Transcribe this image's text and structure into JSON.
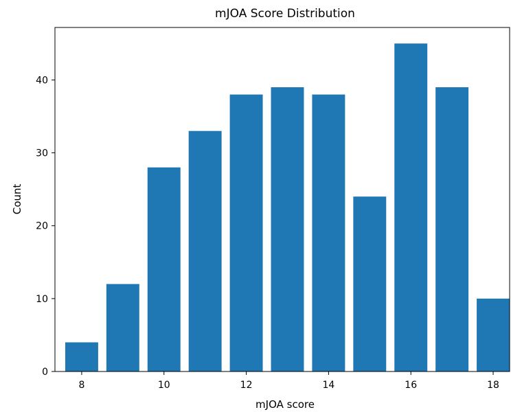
{
  "chart_data": {
    "type": "bar",
    "title": "mJOA Score Distribution",
    "xlabel": "mJOA score",
    "ylabel": "Count",
    "x": [
      8,
      9,
      10,
      11,
      12,
      13,
      14,
      15,
      16,
      17,
      18
    ],
    "values": [
      4,
      12,
      28,
      33,
      38,
      39,
      38,
      24,
      45,
      39,
      10
    ],
    "xlim": [
      7.35,
      18.4
    ],
    "ylim": [
      0,
      47.2
    ],
    "xticks": [
      8,
      10,
      12,
      14,
      16,
      18
    ],
    "yticks": [
      0,
      10,
      20,
      30,
      40
    ],
    "bar_color": "#1f77b4",
    "grid": false,
    "legend": "none"
  }
}
